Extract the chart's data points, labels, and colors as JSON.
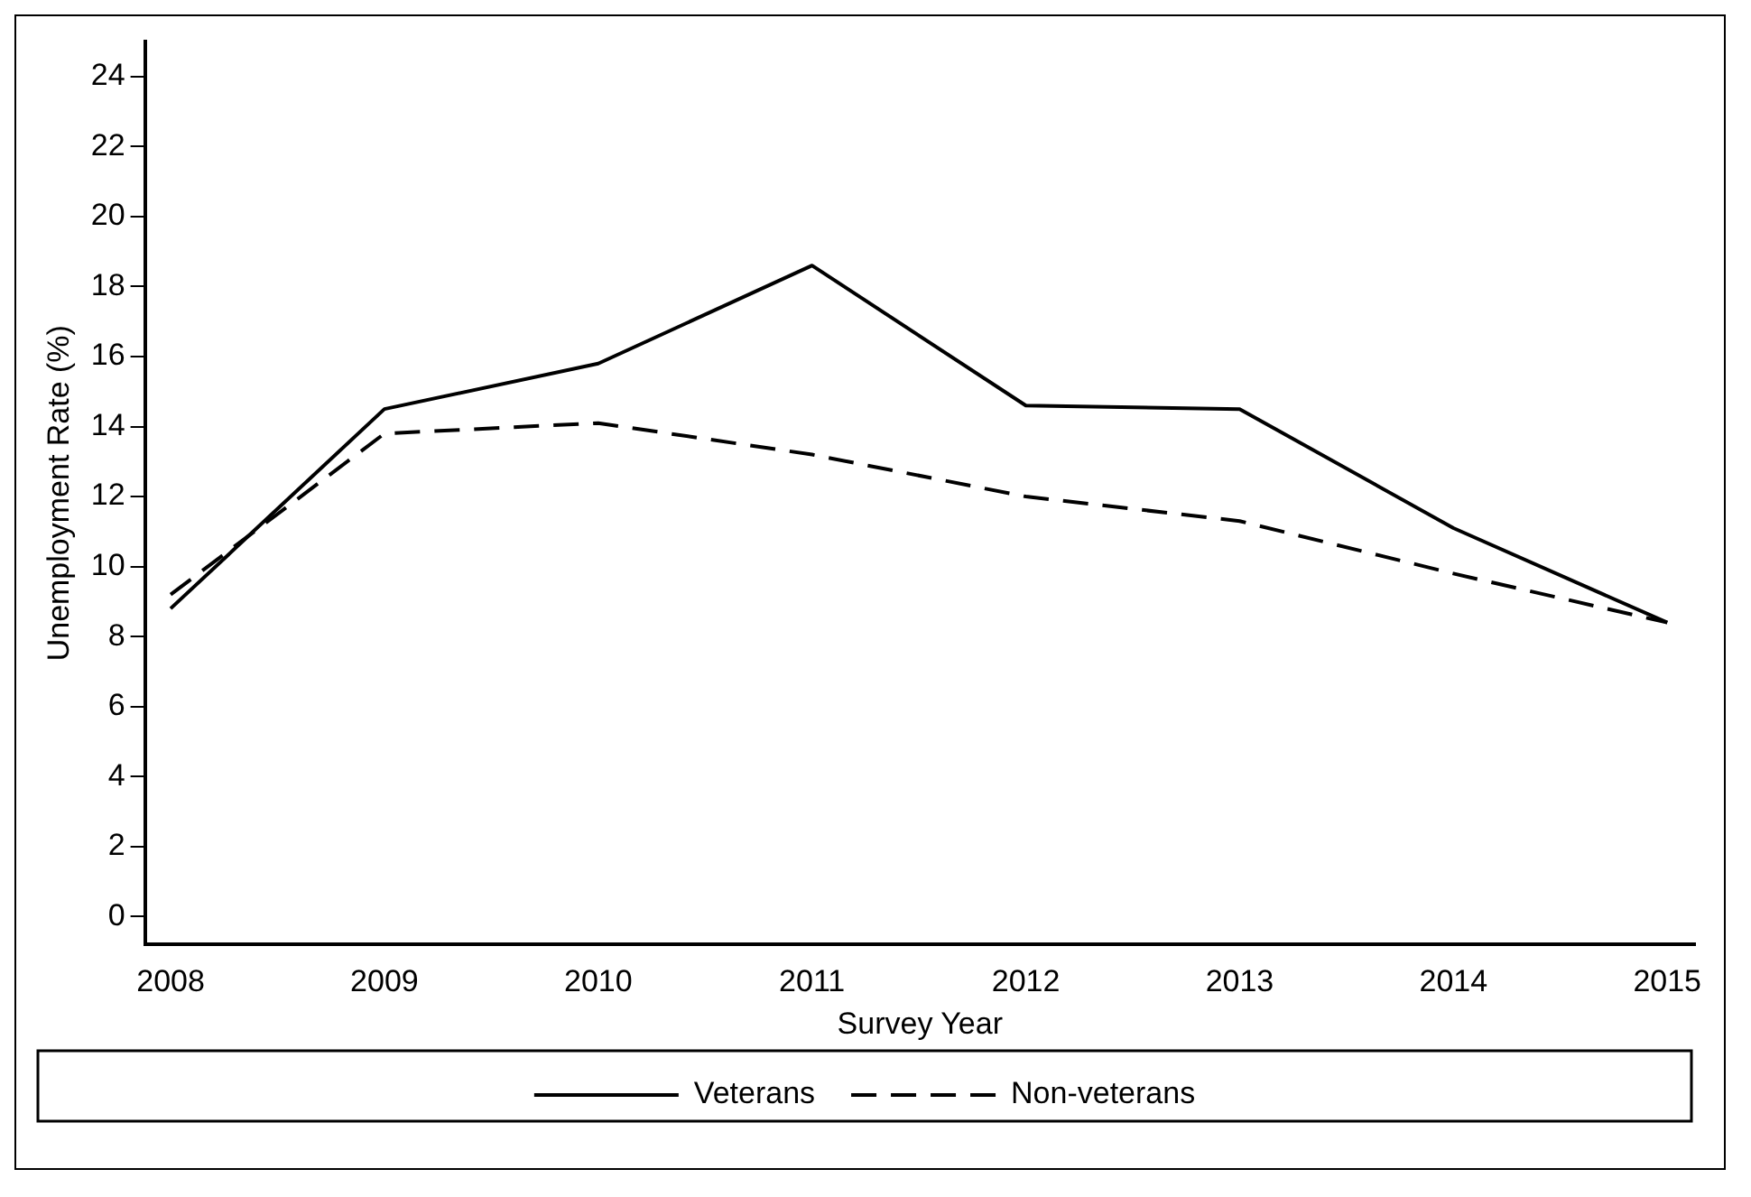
{
  "chart_data": {
    "type": "line",
    "xlabel": "Survey Year",
    "ylabel": "Unemployment Rate (%)",
    "x": [
      2008,
      2009,
      2010,
      2011,
      2012,
      2013,
      2014,
      2015
    ],
    "series": [
      {
        "name": "Veterans",
        "color": "#000000",
        "line_style": "solid",
        "values": [
          8.8,
          14.5,
          15.8,
          18.6,
          14.6,
          14.5,
          11.1,
          8.4
        ]
      },
      {
        "name": "Non-veterans",
        "color": "#000000",
        "line_style": "dashed",
        "values": [
          9.2,
          13.8,
          14.1,
          13.2,
          12.0,
          11.3,
          9.8,
          8.4
        ]
      }
    ],
    "xlim": [
      2007.88,
      2015.13
    ],
    "xticks": [
      2008,
      2009,
      2010,
      2011,
      2012,
      2013,
      2014,
      2015
    ],
    "ylim": [
      -0.8,
      25
    ],
    "yticks": [
      0,
      2,
      4,
      6,
      8,
      10,
      12,
      14,
      16,
      18,
      20,
      22,
      24
    ],
    "grid": false,
    "legend": "bottom",
    "marker": "none"
  }
}
